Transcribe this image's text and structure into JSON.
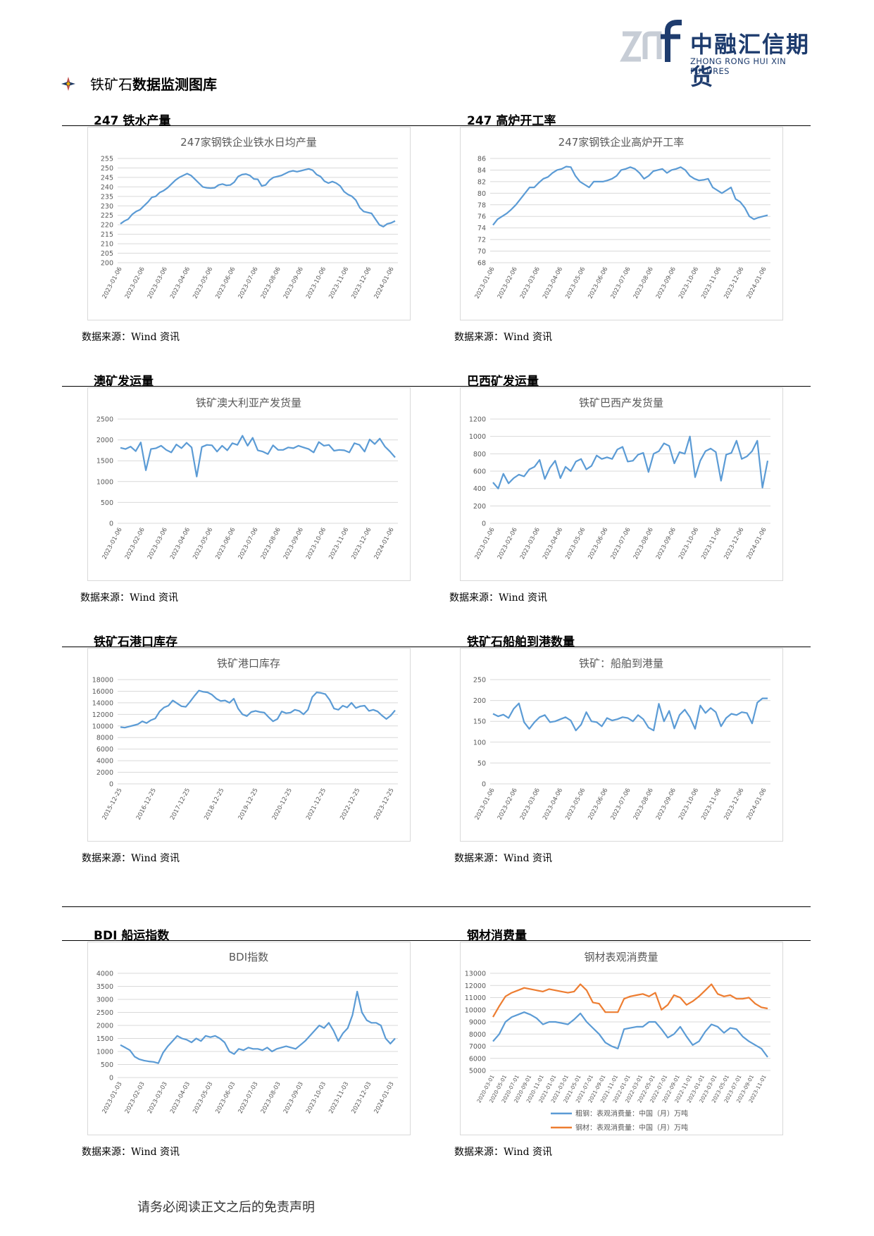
{
  "header": {
    "logo_cn": "中融汇信期货",
    "logo_en": "ZHONG RONG HUI XIN FUTURES",
    "title_lead": "铁矿石",
    "title_rest": "数据监测图库"
  },
  "sections": [
    "247 铁水产量",
    "247 高炉开工率",
    "澳矿发运量",
    "巴西矿发运量",
    "铁矿石港口库存",
    "铁矿石船舶到港数量",
    "BDI 船运指数",
    "钢材消费量"
  ],
  "source_text": "数据来源：Wind 资讯",
  "footer": "请务必阅读正文之后的免责声明",
  "colors": {
    "blue": "#5b9bd5",
    "orange": "#ed7d31",
    "grid": "#d9d9d9",
    "axis_text": "#595959"
  },
  "chart_data": [
    {
      "type": "line",
      "title": "247家钢铁企业铁水日均产量",
      "ylim": [
        200,
        255
      ],
      "yticks": [
        200,
        205,
        210,
        215,
        220,
        225,
        230,
        235,
        240,
        245,
        250,
        255
      ],
      "xticks": [
        "2023-01-06",
        "2023-02-06",
        "2023-03-06",
        "2023-04-06",
        "2023-05-06",
        "2023-06-06",
        "2023-07-06",
        "2023-08-06",
        "2023-09-06",
        "2023-10-06",
        "2023-11-06",
        "2023-12-06",
        "2024-01-06"
      ],
      "series": [
        {
          "color": "#5b9bd5",
          "values": [
            220.5,
            222,
            223,
            225.5,
            227,
            228,
            230,
            232,
            234.5,
            235,
            237,
            238,
            239.5,
            241.5,
            243.5,
            245,
            246,
            247,
            246,
            244,
            242,
            240,
            239.5,
            239.3,
            239.5,
            241,
            241.5,
            240.8,
            241,
            242.5,
            245.5,
            246.5,
            246.8,
            246,
            244.2,
            244,
            240.5,
            241,
            243.5,
            245,
            245.5,
            246,
            247,
            248,
            248.5,
            248,
            248.5,
            249,
            249.5,
            248.8,
            246.5,
            245.5,
            243,
            242,
            242.8,
            242,
            240.5,
            237.5,
            236,
            235,
            233,
            229,
            227,
            226.5,
            226,
            223,
            220,
            219,
            220.5,
            221,
            222
          ]
        }
      ]
    },
    {
      "type": "line",
      "title": "247家钢铁企业高炉开工率",
      "ylim": [
        68,
        86
      ],
      "yticks": [
        68,
        70,
        72,
        74,
        76,
        78,
        80,
        82,
        84,
        86
      ],
      "xticks": [
        "2023-01-06",
        "2023-02-06",
        "2023-03-06",
        "2023-04-06",
        "2023-05-06",
        "2023-06-06",
        "2023-07-06",
        "2023-08-06",
        "2023-09-06",
        "2023-10-06",
        "2023-11-06",
        "2023-12-06",
        "2024-01-06"
      ],
      "series": [
        {
          "color": "#5b9bd5",
          "values": [
            74.5,
            75.5,
            76,
            76.5,
            77.2,
            78,
            79,
            80,
            81,
            81,
            81.8,
            82.5,
            82.8,
            83.5,
            84,
            84.2,
            84.6,
            84.5,
            83,
            82,
            81.5,
            81,
            82,
            82,
            82,
            82.2,
            82.5,
            83,
            84,
            84.2,
            84.5,
            84.2,
            83.5,
            82.5,
            83,
            83.8,
            84,
            84.2,
            83.5,
            84,
            84.2,
            84.5,
            84,
            83,
            82.5,
            82.2,
            82.3,
            82.5,
            81,
            80.5,
            80,
            80.5,
            81,
            79,
            78.5,
            77.5,
            76,
            75.5,
            75.8,
            76,
            76.2
          ]
        }
      ]
    },
    {
      "type": "line",
      "title": "铁矿澳大利亚产发货量",
      "ylim": [
        0,
        2500
      ],
      "yticks": [
        0,
        500,
        1000,
        1500,
        2000,
        2500
      ],
      "xticks": [
        "2023-01-06",
        "2023-02-06",
        "2023-03-06",
        "2023-04-06",
        "2023-05-06",
        "2023-06-06",
        "2023-07-06",
        "2023-08-06",
        "2023-09-06",
        "2023-10-06",
        "2023-11-06",
        "2023-12-06",
        "2024-01-06"
      ],
      "series": [
        {
          "color": "#5b9bd5",
          "values": [
            1810,
            1780,
            1840,
            1730,
            1940,
            1270,
            1780,
            1800,
            1860,
            1760,
            1700,
            1890,
            1800,
            1930,
            1820,
            1120,
            1830,
            1880,
            1870,
            1720,
            1860,
            1750,
            1920,
            1880,
            2100,
            1860,
            2050,
            1750,
            1720,
            1660,
            1870,
            1760,
            1760,
            1820,
            1800,
            1860,
            1820,
            1780,
            1700,
            1950,
            1860,
            1880,
            1740,
            1760,
            1750,
            1700,
            1920,
            1880,
            1720,
            2010,
            1900,
            2030,
            1840,
            1720,
            1580
          ]
        }
      ]
    },
    {
      "type": "line",
      "title": "铁矿巴西产发货量",
      "ylim": [
        0,
        1200
      ],
      "yticks": [
        0,
        200,
        400,
        600,
        800,
        1000,
        1200
      ],
      "xticks": [
        "2023-01-06",
        "2023-02-06",
        "2023-03-06",
        "2023-04-06",
        "2023-05-06",
        "2023-06-06",
        "2023-07-06",
        "2023-08-06",
        "2023-09-06",
        "2023-10-06",
        "2023-11-06",
        "2023-12-06",
        "2024-01-06"
      ],
      "series": [
        {
          "color": "#5b9bd5",
          "values": [
            470,
            400,
            570,
            460,
            520,
            560,
            540,
            620,
            650,
            730,
            510,
            640,
            720,
            520,
            650,
            600,
            710,
            740,
            620,
            660,
            780,
            740,
            760,
            740,
            850,
            880,
            710,
            720,
            790,
            810,
            590,
            800,
            830,
            920,
            890,
            690,
            820,
            800,
            1000,
            530,
            720,
            830,
            860,
            820,
            490,
            790,
            810,
            950,
            740,
            770,
            830,
            950,
            410,
            720
          ]
        }
      ]
    },
    {
      "type": "line",
      "title": "铁矿港口库存",
      "ylim": [
        0,
        18000
      ],
      "yticks": [
        0,
        2000,
        4000,
        6000,
        8000,
        10000,
        12000,
        14000,
        16000,
        18000
      ],
      "xticks": [
        "2015-12-25",
        "2016-12-25",
        "2017-12-25",
        "2018-12-25",
        "2019-12-25",
        "2020-12-25",
        "2021-12-25",
        "2022-12-25",
        "2023-12-25"
      ],
      "series": [
        {
          "color": "#5b9bd5",
          "values": [
            9800,
            9700,
            9900,
            10100,
            10300,
            10800,
            10500,
            11000,
            11300,
            12500,
            13200,
            13500,
            14400,
            13900,
            13400,
            13300,
            14200,
            15200,
            16100,
            15900,
            15800,
            15400,
            14700,
            14300,
            14400,
            14000,
            14700,
            13000,
            12000,
            11700,
            12400,
            12600,
            12400,
            12300,
            11500,
            10800,
            11200,
            12500,
            12200,
            12300,
            12800,
            12600,
            12000,
            12800,
            15000,
            15800,
            15700,
            15500,
            14500,
            13000,
            12800,
            13500,
            13200,
            14000,
            13100,
            13400,
            13500,
            12600,
            12800,
            12500,
            11800,
            11200,
            11800,
            12700
          ]
        }
      ]
    },
    {
      "type": "line",
      "title": "铁矿：船舶到港量",
      "ylim": [
        0,
        250
      ],
      "yticks": [
        0,
        50,
        100,
        150,
        200,
        250
      ],
      "xticks": [
        "2023-01-06",
        "2023-02-06",
        "2023-03-06",
        "2023-04-06",
        "2023-05-06",
        "2023-06-06",
        "2023-07-06",
        "2023-08-06",
        "2023-09-06",
        "2023-10-06",
        "2023-11-06",
        "2023-12-06",
        "2024-01-06"
      ],
      "series": [
        {
          "color": "#5b9bd5",
          "values": [
            168,
            162,
            166,
            158,
            180,
            193,
            148,
            132,
            148,
            160,
            165,
            148,
            150,
            155,
            160,
            152,
            128,
            142,
            172,
            150,
            148,
            138,
            158,
            152,
            155,
            160,
            158,
            150,
            165,
            155,
            135,
            128,
            192,
            150,
            175,
            133,
            165,
            178,
            160,
            132,
            188,
            170,
            182,
            172,
            138,
            158,
            168,
            165,
            172,
            170,
            145,
            195,
            205,
            205
          ]
        }
      ]
    },
    {
      "type": "line",
      "title": "BDI指数",
      "ylim": [
        0,
        4000
      ],
      "yticks": [
        0,
        500,
        1000,
        1500,
        2000,
        2500,
        3000,
        3500,
        4000
      ],
      "xticks": [
        "2023-01-03",
        "2023-02-03",
        "2023-03-03",
        "2023-04-03",
        "2023-05-03",
        "2023-06-03",
        "2023-07-03",
        "2023-08-03",
        "2023-09-03",
        "2023-10-03",
        "2023-11-03",
        "2023-12-03",
        "2024-01-03"
      ],
      "series": [
        {
          "color": "#5b9bd5",
          "values": [
            1250,
            1150,
            1050,
            800,
            700,
            650,
            620,
            600,
            550,
            950,
            1200,
            1400,
            1600,
            1500,
            1450,
            1350,
            1500,
            1400,
            1600,
            1550,
            1600,
            1500,
            1350,
            1000,
            900,
            1100,
            1050,
            1150,
            1100,
            1100,
            1050,
            1150,
            1000,
            1100,
            1150,
            1200,
            1150,
            1100,
            1250,
            1400,
            1600,
            1800,
            2000,
            1900,
            2100,
            1800,
            1400,
            1700,
            1900,
            2400,
            3300,
            2500,
            2200,
            2100,
            2100,
            2000,
            1500,
            1300,
            1500
          ]
        }
      ]
    },
    {
      "type": "line",
      "title": "钢材表观消费量",
      "ylim": [
        5000,
        13000
      ],
      "yticks": [
        5000,
        6000,
        7000,
        8000,
        9000,
        10000,
        11000,
        12000,
        13000
      ],
      "xticks": [
        "2020-03-01",
        "2020-05-01",
        "2020-07-01",
        "2020-09-01",
        "2020-11-01",
        "2021-01-01",
        "2021-03-01",
        "2021-05-01",
        "2021-07-01",
        "2021-09-01",
        "2021-11-01",
        "2022-01-01",
        "2022-03-01",
        "2022-05-01",
        "2022-07-01",
        "2022-09-01",
        "2022-11-01",
        "2023-01-01",
        "2023-03-01",
        "2023-05-01",
        "2023-07-01",
        "2023-09-01",
        "2023-11-01"
      ],
      "legend": [
        "粗钢：表观消费量：中国（月）万吨",
        "钢材：表观消费量：中国（月）万吨"
      ],
      "series": [
        {
          "name": "粗钢：表观消费量：中国（月）万吨",
          "color": "#5b9bd5",
          "values": [
            7400,
            8000,
            9000,
            9400,
            9600,
            9800,
            9600,
            9300,
            8800,
            9000,
            9000,
            8900,
            8800,
            9200,
            9700,
            9000,
            8500,
            8000,
            7300,
            7000,
            6800,
            8400,
            8500,
            8600,
            8600,
            9000,
            9000,
            8400,
            7700,
            8000,
            8600,
            7800,
            7100,
            7400,
            8200,
            8800,
            8600,
            8100,
            8500,
            8400,
            7800,
            7400,
            7100,
            6800,
            6100
          ]
        },
        {
          "name": "钢材：表观消费量：中国（月）万吨",
          "color": "#ed7d31",
          "values": [
            9400,
            10300,
            11100,
            11400,
            11600,
            11800,
            11700,
            11600,
            11500,
            11700,
            11600,
            11500,
            11400,
            11500,
            12100,
            11600,
            10600,
            10500,
            9800,
            9800,
            9800,
            10900,
            11100,
            11200,
            11300,
            11100,
            11400,
            10000,
            10400,
            11200,
            11000,
            10400,
            10700,
            11100,
            11600,
            12100,
            11300,
            11100,
            11200,
            10900,
            10900,
            11000,
            10500,
            10200,
            10100
          ]
        }
      ]
    }
  ]
}
